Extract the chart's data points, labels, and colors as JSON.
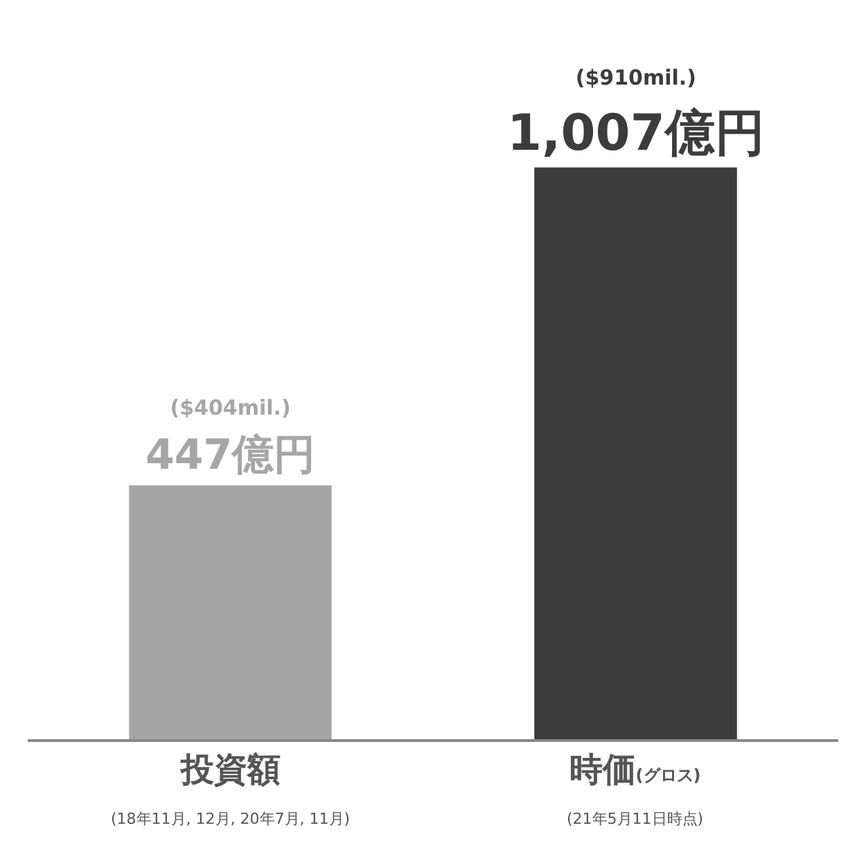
{
  "chart_data": {
    "type": "bar",
    "categories": [
      "投資額\n(18年11月, 12月, 20年7月, 11月)",
      "時価(グロス)\n(21年5月11日時点)"
    ],
    "values": [
      447,
      1007
    ],
    "colors": [
      "#a6a6a6",
      "#3c3c3c"
    ],
    "value_labels": [
      "($404mil.)\n447億円",
      "($910mil.)\n1,007億円"
    ],
    "grid": false
  }
}
